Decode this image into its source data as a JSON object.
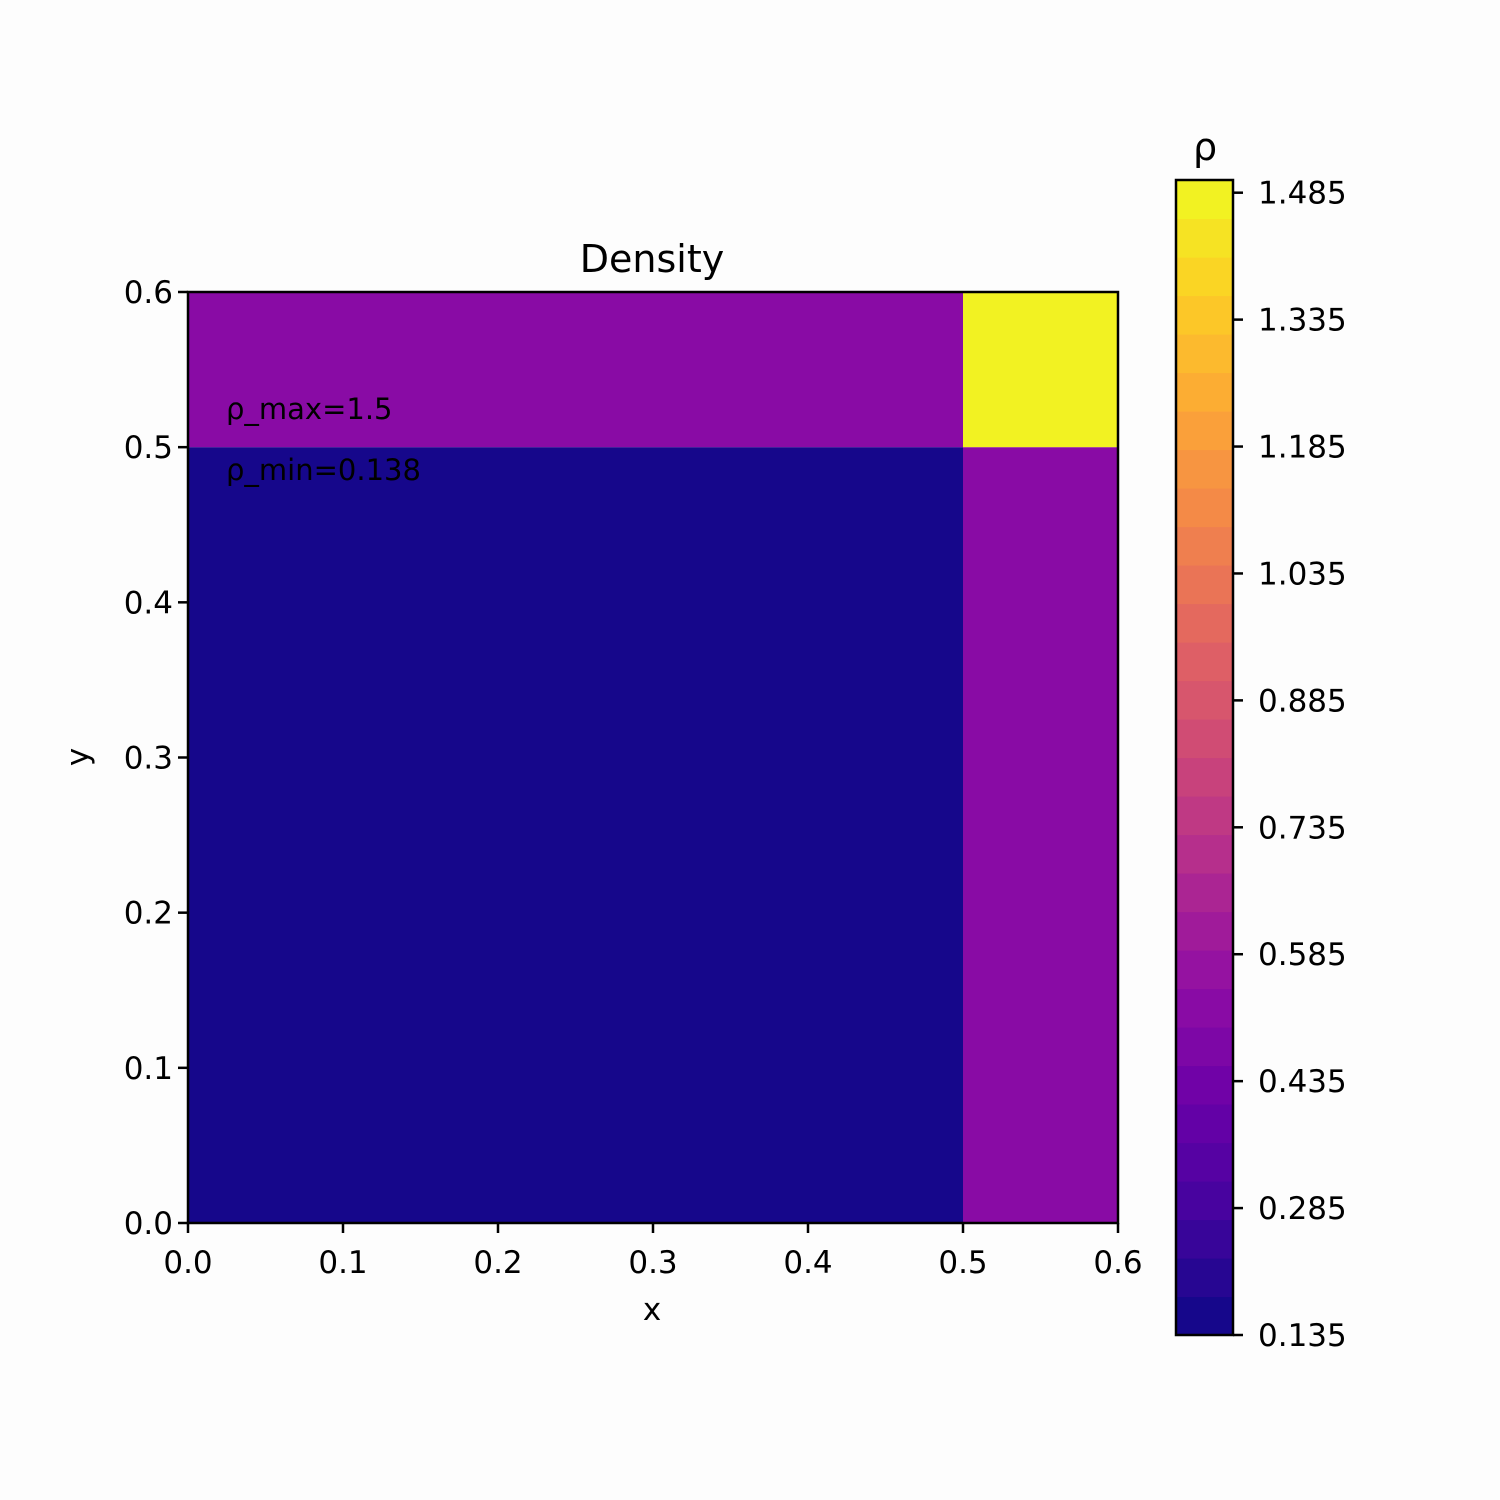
{
  "chart_data": {
    "type": "heatmap",
    "title": "Density",
    "xlabel": "x",
    "ylabel": "y",
    "xlim": [
      0.0,
      0.6
    ],
    "ylim": [
      0.0,
      0.6
    ],
    "x_ticks": [
      "0.0",
      "0.1",
      "0.2",
      "0.3",
      "0.4",
      "0.5",
      "0.6"
    ],
    "y_ticks": [
      "0.0",
      "0.1",
      "0.2",
      "0.3",
      "0.4",
      "0.5",
      "0.6"
    ],
    "regions": [
      {
        "x": [
          0.0,
          0.5
        ],
        "y": [
          0.0,
          0.5
        ],
        "value": 0.138
      },
      {
        "x": [
          0.5,
          0.6
        ],
        "y": [
          0.0,
          0.5
        ],
        "value": 0.532
      },
      {
        "x": [
          0.0,
          0.5
        ],
        "y": [
          0.5,
          0.6
        ],
        "value": 0.532
      },
      {
        "x": [
          0.5,
          0.6
        ],
        "y": [
          0.5,
          0.6
        ],
        "value": 1.5
      }
    ],
    "annotations": [
      "ρ_max=1.5",
      "ρ_min=0.138"
    ],
    "colorbar": {
      "label": "ρ",
      "colormap": "plasma",
      "range": [
        0.135,
        1.5
      ],
      "ticks": [
        "0.135",
        "0.285",
        "0.435",
        "0.585",
        "0.735",
        "0.885",
        "1.035",
        "1.185",
        "1.335",
        "1.485"
      ],
      "levels": 30
    },
    "grid": false
  }
}
